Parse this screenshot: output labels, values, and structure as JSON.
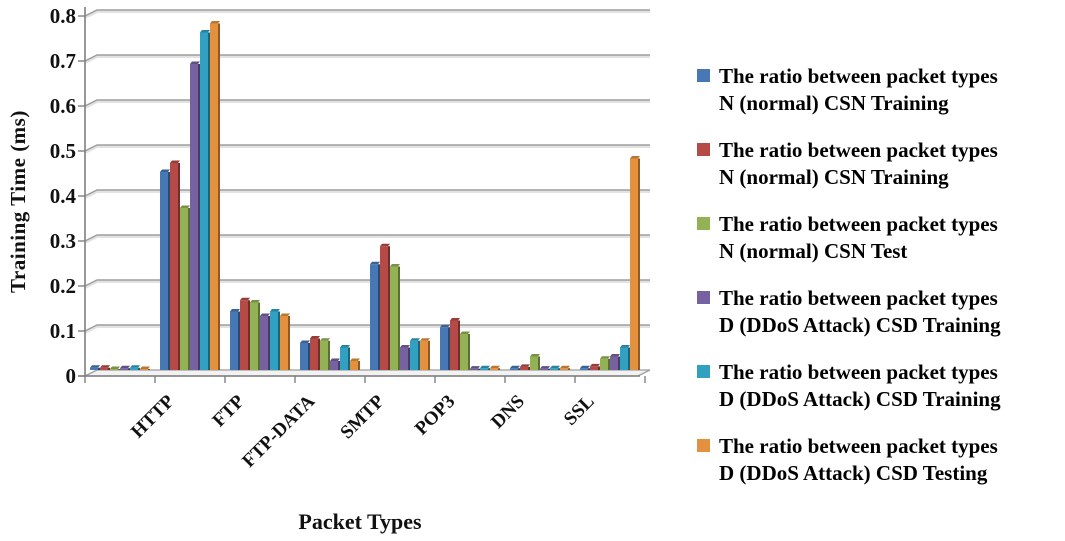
{
  "chart_data": {
    "type": "bar",
    "title": "",
    "xlabel": "Packet Types",
    "ylabel": "Training Time (ms)",
    "ylim": [
      0,
      0.8
    ],
    "yticks": [
      0,
      0.1,
      0.2,
      0.3,
      0.4,
      0.5,
      0.6,
      0.7,
      0.8
    ],
    "ytick_labels": [
      "0",
      "0.1",
      "0.2",
      "0.3",
      "0.4",
      "0.5",
      "0.6",
      "0.7",
      "0.8"
    ],
    "grid": true,
    "legend_position": "right",
    "categories": [
      "",
      "HTTP",
      "FTP",
      "FTP-DATA",
      "SMTP",
      "POP3",
      "DNS",
      "SSL"
    ],
    "series": [
      {
        "name": "The ratio between packet types N (normal) CSN Training",
        "color": "#4778B3",
        "values": [
          0.005,
          0.44,
          0.13,
          0.06,
          0.235,
          0.095,
          0.004,
          0.004
        ]
      },
      {
        "name": "The ratio between packet types N (normal) CSN Training",
        "color": "#B54A47",
        "values": [
          0.005,
          0.46,
          0.155,
          0.07,
          0.275,
          0.11,
          0.007,
          0.008
        ]
      },
      {
        "name": "The ratio between packet types N (normal) CSN Test",
        "color": "#93B155",
        "values": [
          0.002,
          0.36,
          0.15,
          0.065,
          0.23,
          0.08,
          0.03,
          0.025
        ]
      },
      {
        "name": "The ratio between packet types D (DDoS Attack) CSD Training",
        "color": "#7661A1",
        "values": [
          0.004,
          0.68,
          0.12,
          0.02,
          0.05,
          0.003,
          0.003,
          0.03
        ]
      },
      {
        "name": "The ratio between packet types D (DDoS Attack) CSD Training",
        "color": "#31A0C1",
        "values": [
          0.005,
          0.75,
          0.13,
          0.05,
          0.065,
          0.004,
          0.004,
          0.05
        ]
      },
      {
        "name": "The ratio between packet types D (DDoS Attack) CSD Testing",
        "color": "#E3913F",
        "values": [
          0.002,
          0.77,
          0.12,
          0.02,
          0.065,
          0.004,
          0.004,
          0.47
        ]
      }
    ]
  },
  "legend": {
    "entries": [
      {
        "color": "#4778B3",
        "line1": "The ratio between packet types",
        "line2": "N (normal) CSN Training"
      },
      {
        "color": "#B54A47",
        "line1": "The ratio between packet types",
        "line2": "N (normal) CSN Training"
      },
      {
        "color": "#93B155",
        "line1": "The ratio between packet types",
        "line2": "N (normal) CSN Test"
      },
      {
        "color": "#7661A1",
        "line1": "The ratio between packet types",
        "line2": "D (DDoS Attack) CSD Training"
      },
      {
        "color": "#31A0C1",
        "line1": "The ratio between packet types",
        "line2": "D (DDoS Attack) CSD Training"
      },
      {
        "color": "#E3913F",
        "line1": "The ratio between packet types",
        "line2": "D (DDoS Attack) CSD Testing"
      }
    ]
  }
}
